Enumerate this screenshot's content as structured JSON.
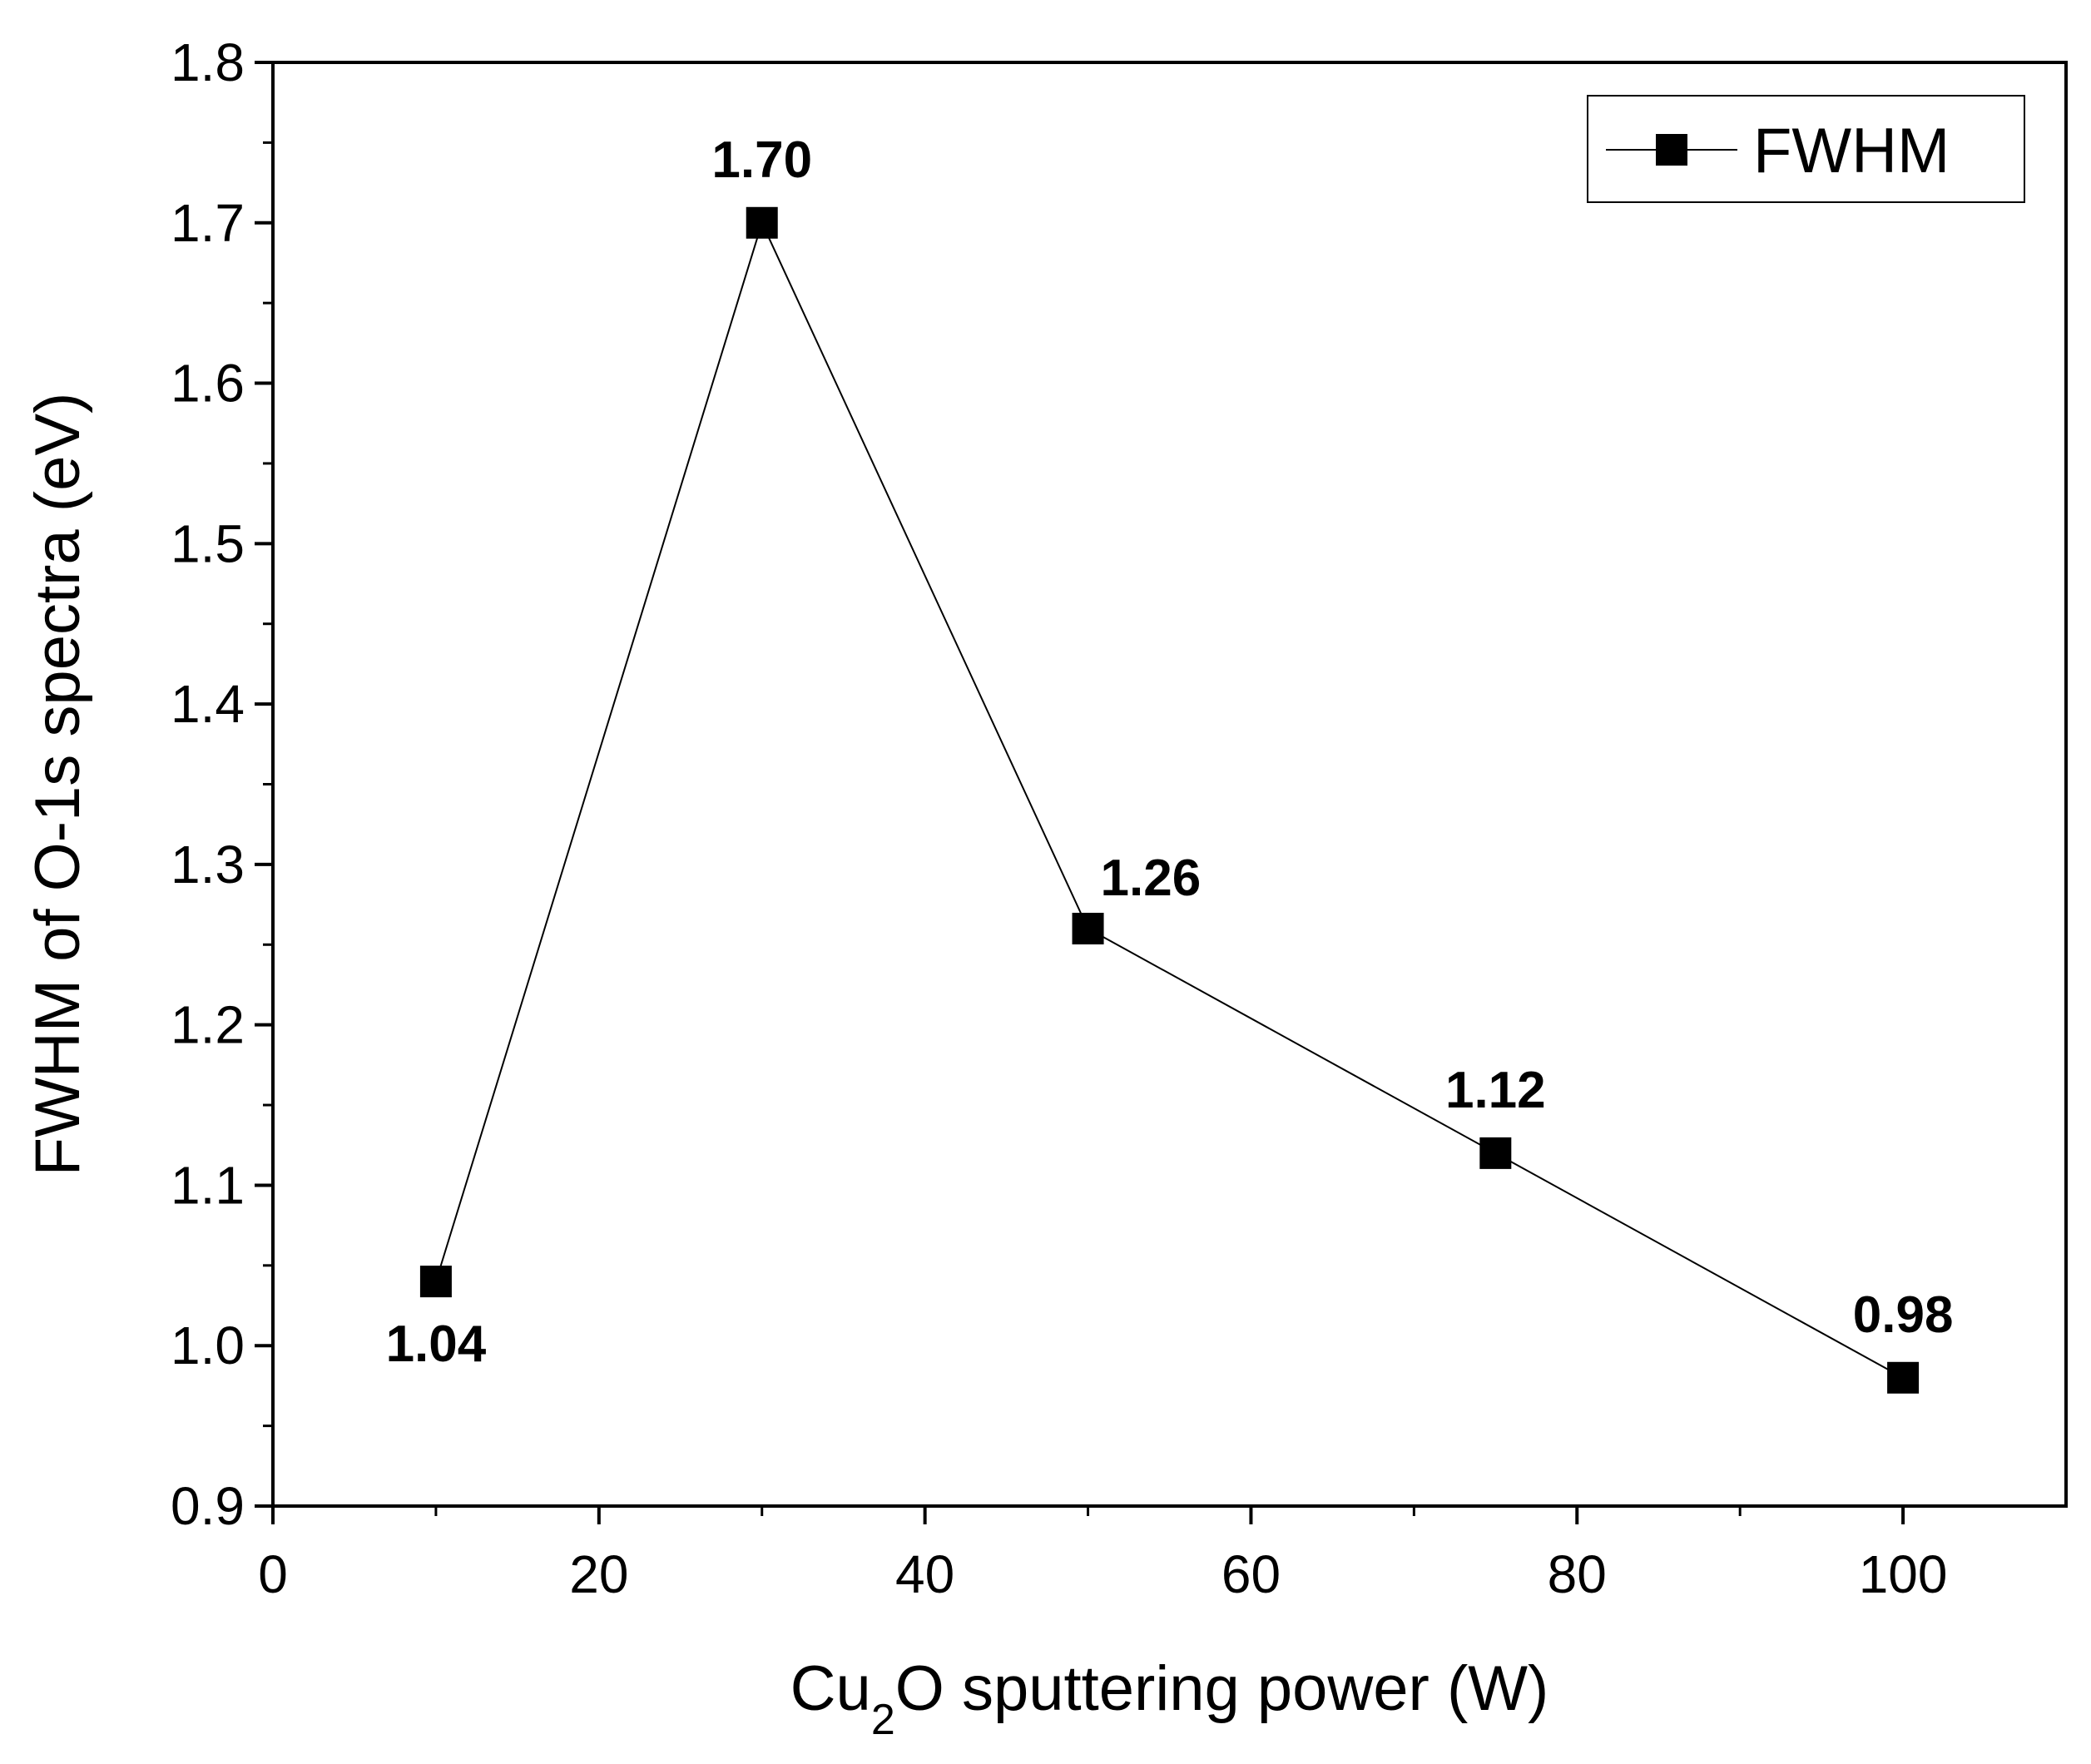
{
  "chart_data": {
    "type": "line",
    "title": "",
    "xlabel": "Cu2O sputtering power (W)",
    "xlabel_parts": {
      "pre": "Cu",
      "sub": "2",
      "post": "O sputtering power (W)"
    },
    "ylabel": "FWHM of O-1s spectra (eV)",
    "xlim": [
      0,
      110
    ],
    "ylim": [
      0.9,
      1.8
    ],
    "x_ticks": [
      0,
      20,
      40,
      60,
      80,
      100
    ],
    "x_tick_labels": [
      "0",
      "20",
      "40",
      "60",
      "80",
      "100"
    ],
    "x_minor_ticks": [
      10,
      30,
      50,
      70,
      90
    ],
    "y_ticks": [
      0.9,
      1.0,
      1.1,
      1.2,
      1.3,
      1.4,
      1.5,
      1.6,
      1.7,
      1.8
    ],
    "y_tick_labels": [
      "0.9",
      "1.0",
      "1.1",
      "1.2",
      "1.3",
      "1.4",
      "1.5",
      "1.6",
      "1.7",
      "1.8"
    ],
    "y_minor_ticks": [
      0.95,
      1.05,
      1.15,
      1.25,
      1.35,
      1.45,
      1.55,
      1.65,
      1.75
    ],
    "grid": false,
    "legend_position": "top-right",
    "series": [
      {
        "name": "FWHM",
        "marker": "square",
        "color": "#000000",
        "x": [
          10,
          30,
          50,
          75,
          100
        ],
        "y": [
          1.04,
          1.7,
          1.26,
          1.12,
          0.98
        ],
        "data_labels": [
          "1.04",
          "1.70",
          "1.26",
          "1.12",
          "0.98"
        ],
        "label_placement": [
          "below",
          "above",
          "above-right",
          "above",
          "above"
        ]
      }
    ]
  }
}
